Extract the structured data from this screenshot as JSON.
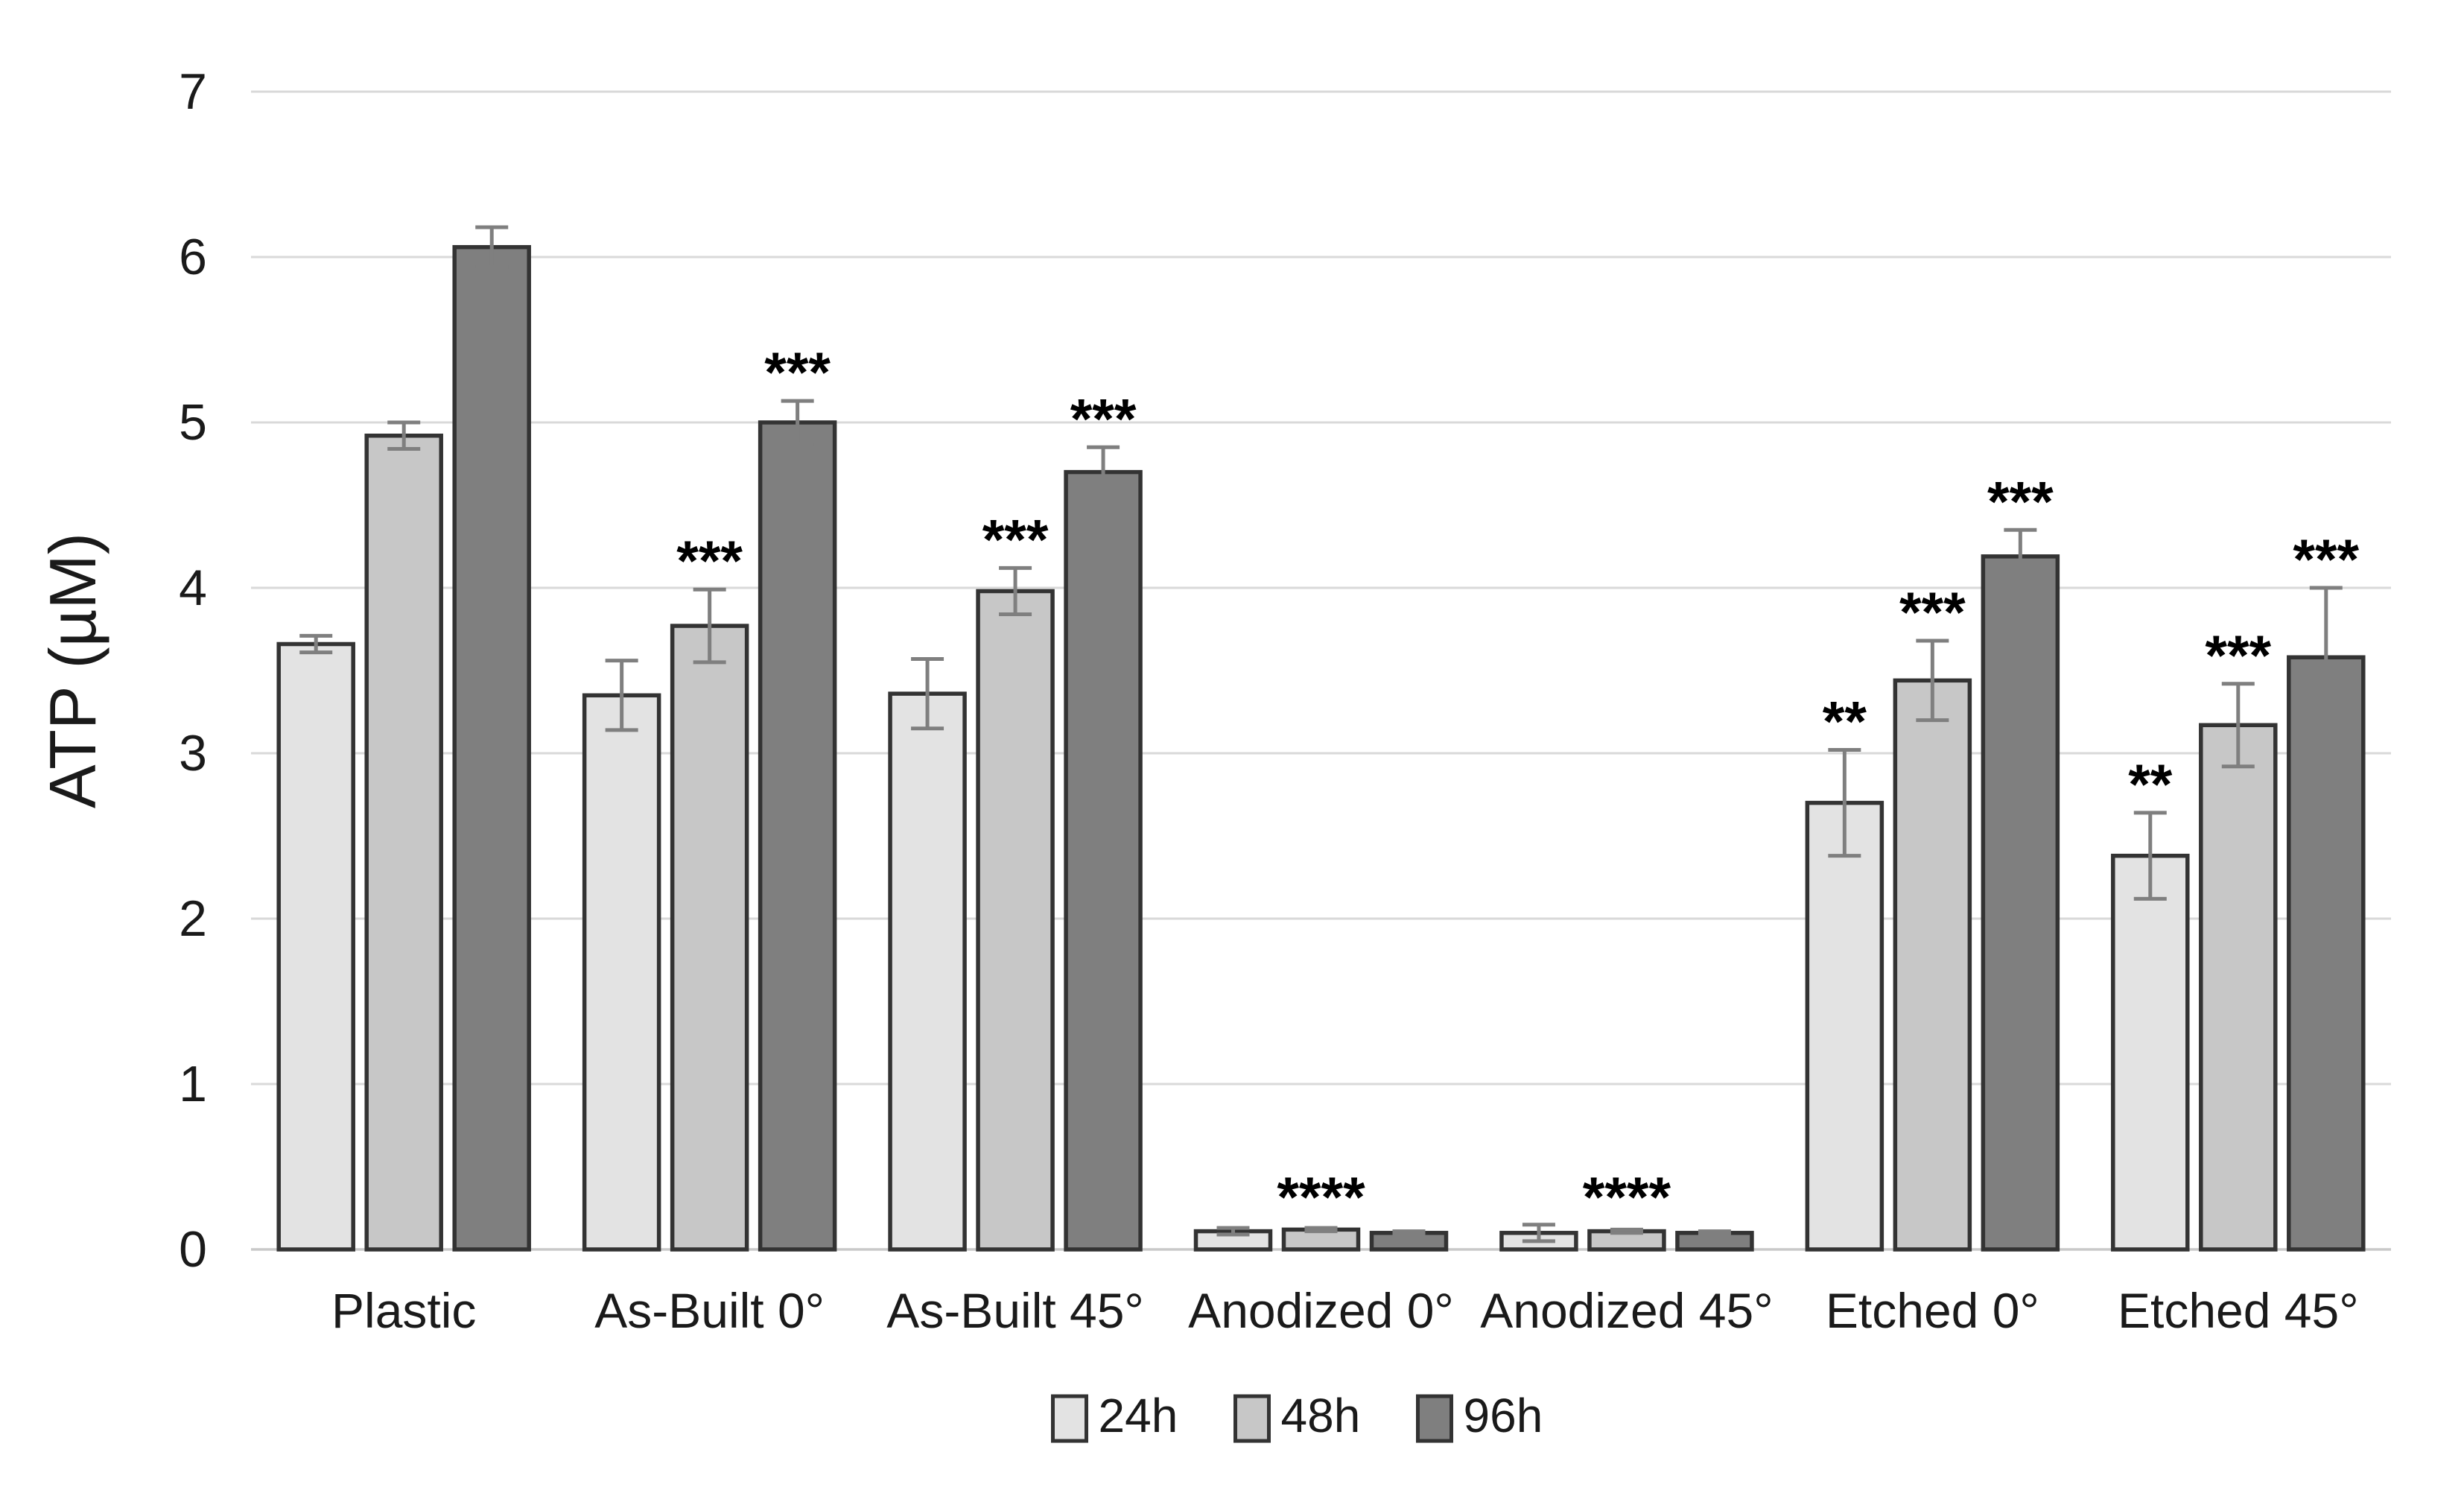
{
  "figure": {
    "description": "Grouped bar chart of ATP concentration for different surface treatments at three culture times, with error bars and significance markers"
  },
  "chart_data": {
    "type": "bar",
    "title": "",
    "xlabel": "",
    "ylabel": "ATP (µM)",
    "ylim": [
      0,
      7
    ],
    "yticks": [
      0,
      1,
      2,
      3,
      4,
      5,
      6,
      7
    ],
    "grid": true,
    "legend_position": "bottom",
    "categories": [
      "Plastic",
      "As-Built 0°",
      "As-Built 45°",
      "Anodized 0°",
      "Anodized 45°",
      "Etched 0°",
      "Etched 45°"
    ],
    "series": [
      {
        "name": "24h",
        "color": "#e3e3e3",
        "values": [
          3.66,
          3.35,
          3.36,
          0.11,
          0.1,
          2.7,
          2.38
        ],
        "errors": [
          0.05,
          0.21,
          0.21,
          0.02,
          0.05,
          0.32,
          0.26
        ],
        "sig": [
          null,
          null,
          null,
          null,
          null,
          "**",
          "**"
        ]
      },
      {
        "name": "48h",
        "color": "#c7c7c7",
        "values": [
          4.92,
          3.77,
          3.98,
          0.12,
          0.11,
          3.44,
          3.17
        ],
        "errors": [
          0.08,
          0.22,
          0.14,
          0.01,
          0.01,
          0.24,
          0.25
        ],
        "sig": [
          null,
          "***",
          "***",
          null,
          null,
          "***",
          "***"
        ]
      },
      {
        "name": "96h",
        "color": "#7f7f7f",
        "values": [
          6.06,
          5.0,
          4.7,
          0.1,
          0.1,
          4.19,
          3.58
        ],
        "errors": [
          0.12,
          0.13,
          0.15,
          0.01,
          0.01,
          0.16,
          0.42
        ],
        "sig": [
          null,
          "***",
          "***",
          null,
          null,
          "***",
          "***"
        ]
      }
    ],
    "group_sig": [
      null,
      null,
      null,
      "****",
      "****",
      null,
      null
    ]
  },
  "style": {
    "background": "#ffffff",
    "gridline_color": "#d9d9d9",
    "axis_line_color": "#c9c9c9",
    "bar_border_color": "#333333",
    "error_bar_color": "#7f7f7f",
    "text_color": "#1a1a1a",
    "sig_color": "#000000"
  }
}
